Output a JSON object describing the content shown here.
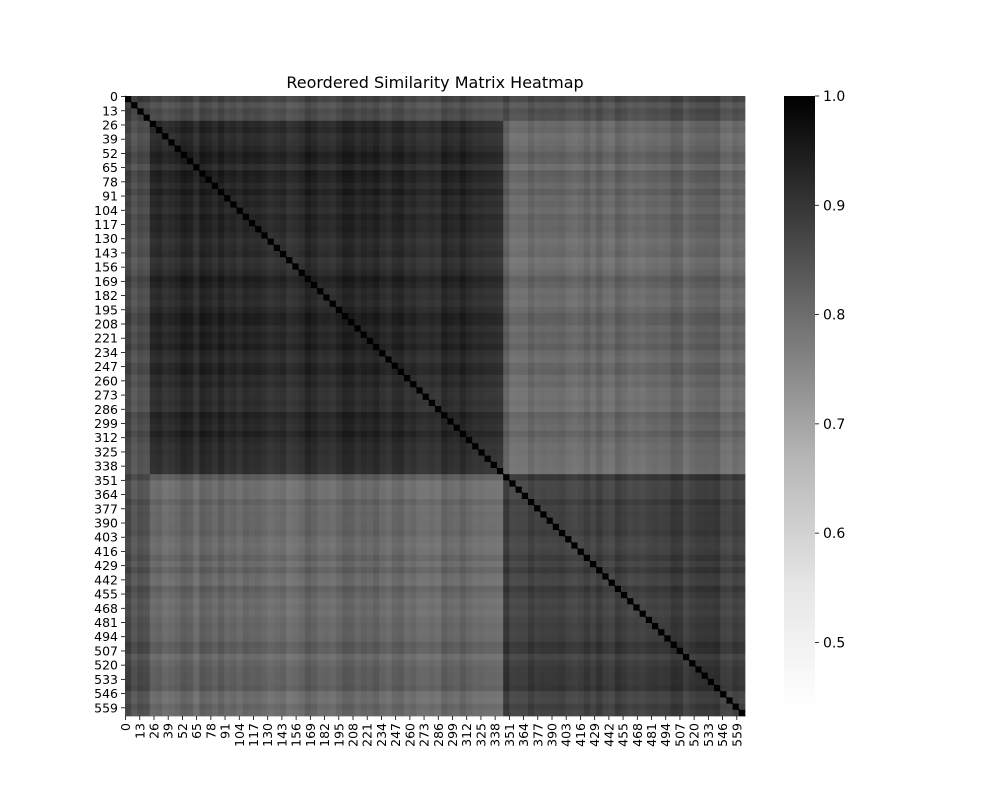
{
  "chart_data": {
    "type": "heatmap",
    "title": "Reordered Similarity Matrix Heatmap",
    "xlabel": "",
    "ylabel": "",
    "n": 567,
    "tick_step": 13,
    "x_tick_labels": [
      "0",
      "13",
      "26",
      "39",
      "52",
      "65",
      "78",
      "91",
      "104",
      "117",
      "130",
      "143",
      "156",
      "169",
      "182",
      "195",
      "208",
      "221",
      "234",
      "247",
      "260",
      "273",
      "286",
      "299",
      "312",
      "325",
      "338",
      "351",
      "364",
      "377",
      "390",
      "403",
      "416",
      "429",
      "442",
      "455",
      "468",
      "481",
      "494",
      "507",
      "520",
      "533",
      "546",
      "559"
    ],
    "y_tick_labels": [
      "0",
      "13",
      "26",
      "39",
      "52",
      "65",
      "78",
      "91",
      "104",
      "117",
      "130",
      "143",
      "156",
      "169",
      "182",
      "195",
      "208",
      "221",
      "234",
      "247",
      "260",
      "273",
      "286",
      "299",
      "312",
      "325",
      "338",
      "351",
      "364",
      "377",
      "390",
      "403",
      "416",
      "429",
      "442",
      "455",
      "468",
      "481",
      "494",
      "507",
      "520",
      "533",
      "546",
      "559"
    ],
    "colormap": "Greys",
    "colorbar_range": [
      0.44,
      1.0
    ],
    "colorbar_ticks": [
      "0.5",
      "0.6",
      "0.7",
      "0.8",
      "0.9",
      "1.0"
    ],
    "diagonal_value": 1.0,
    "block_boundaries": [
      0,
      24,
      347,
      567
    ],
    "block_summary": [
      {
        "rows": [
          0,
          23
        ],
        "cols": [
          0,
          23
        ],
        "value": 0.85
      },
      {
        "rows": [
          24,
          346
        ],
        "cols": [
          24,
          346
        ],
        "value": 0.9
      },
      {
        "rows": [
          347,
          566
        ],
        "cols": [
          347,
          566
        ],
        "value": 0.88
      },
      {
        "rows": [
          24,
          346
        ],
        "cols": [
          347,
          566
        ],
        "value": 0.76
      },
      {
        "rows": [
          0,
          23
        ],
        "cols": [
          24,
          566
        ],
        "value": 0.82
      }
    ]
  }
}
